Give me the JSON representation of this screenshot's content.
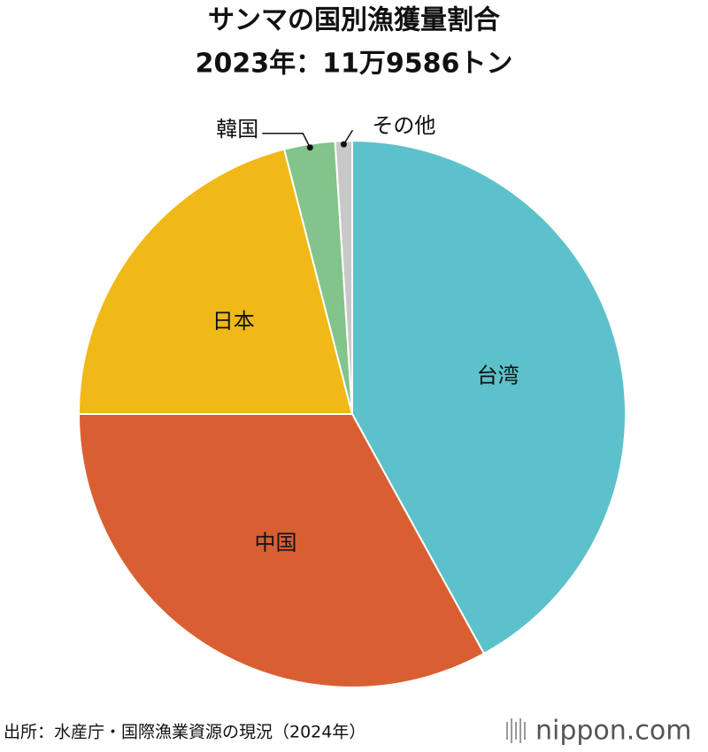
{
  "chart_data": {
    "type": "pie",
    "title": "サンマの国別漁獲量割合",
    "subtitle": "2023年：11万9586トン",
    "categories": [
      "台湾",
      "中国",
      "日本",
      "韓国",
      "その他"
    ],
    "values": [
      42,
      33,
      21,
      3,
      1
    ],
    "colors": [
      "#5dc1cb",
      "#d95f32",
      "#f0b917",
      "#82c48a",
      "#c8c8c8"
    ],
    "source": "出所：水産庁・国際漁業資源の現況（2024年）",
    "brand": "nippon.com"
  }
}
